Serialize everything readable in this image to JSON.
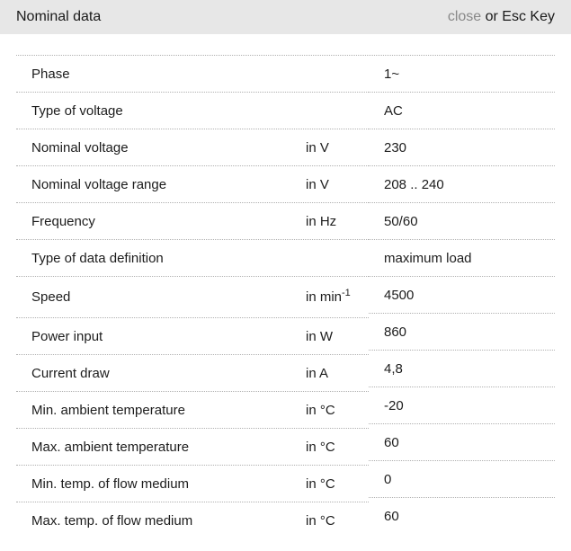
{
  "header": {
    "title": "Nominal data",
    "close_label": "close",
    "close_suffix": " or Esc Key"
  },
  "colors": {
    "header_bg": "#e7e7e7",
    "separator": "#b0b0b0",
    "close_link": "#888888",
    "text": "#1c1c1c"
  },
  "table": {
    "rows": [
      {
        "label": "Phase",
        "unit": "",
        "value": "1~"
      },
      {
        "label": "Type of voltage",
        "unit": "",
        "value": "AC"
      },
      {
        "label": "Nominal voltage",
        "unit": "in V",
        "value": "230"
      },
      {
        "label": "Nominal voltage range",
        "unit": "in V",
        "value": "208 .. 240"
      },
      {
        "label": "Frequency",
        "unit": "in Hz",
        "value": "50/60"
      },
      {
        "label": "Type of data definition",
        "unit": "",
        "value": "maximum load"
      },
      {
        "label": "Speed",
        "unit": "in min",
        "unit_sup": "-1",
        "value": "4500"
      },
      {
        "label": "Power input",
        "unit": "in W",
        "value": "860"
      },
      {
        "label": "Current draw",
        "unit": "in A",
        "value": "4,8"
      },
      {
        "label": "Min. ambient temperature",
        "unit": "in °C",
        "value": "-20"
      },
      {
        "label": "Max. ambient temperature",
        "unit": "in °C",
        "value": "60"
      },
      {
        "label": "Min. temp. of flow medium",
        "unit": "in °C",
        "value": "0"
      },
      {
        "label": "Max. temp. of flow medium",
        "unit": "in °C",
        "value": "60"
      }
    ]
  }
}
